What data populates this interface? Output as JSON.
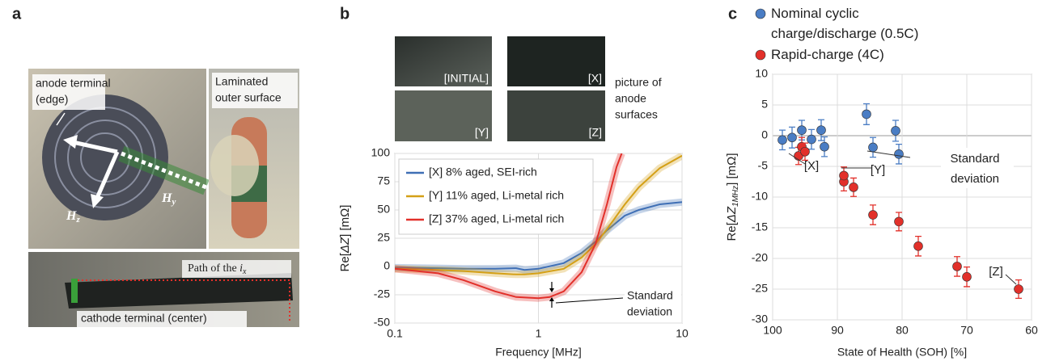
{
  "panel_labels": [
    "a",
    "b",
    "c"
  ],
  "photos_a": {
    "anode_terminal": [
      "anode terminal",
      "(edge)"
    ],
    "laminated": [
      "Laminated",
      "outer surface"
    ],
    "hz": [
      "H",
      "z"
    ],
    "hy": [
      "H",
      "y"
    ],
    "path": [
      "Path of the ",
      "i",
      "x"
    ],
    "cathode_terminal": "cathode terminal (center)"
  },
  "photos_b": {
    "labels": [
      "[INITIAL]",
      "[X]",
      "[Y]",
      "[Z]"
    ],
    "caption": [
      "picture of",
      "anode",
      "surfaces"
    ]
  },
  "chart_data": [
    {
      "type": "line",
      "xlabel": "Frequency [MHz]",
      "ylabel": [
        "Re[",
        "ΔZ",
        "]  [mΩ]"
      ],
      "log_x": true,
      "xlim": [
        0.1,
        10
      ],
      "xticks": [
        0.1,
        1,
        10
      ],
      "ylim": [
        -50,
        100
      ],
      "yticks": [
        -50,
        -25,
        0,
        25,
        50,
        75,
        100
      ],
      "grid": true,
      "legend": "upper left",
      "annotation": [
        "Standard",
        "deviation"
      ],
      "series": [
        {
          "name": "[X] 8% aged, SEI-rich",
          "color": "#3f6fb5",
          "x": [
            0.1,
            0.2,
            0.3,
            0.5,
            0.7,
            0.8,
            1,
            1.5,
            2,
            2.5,
            3,
            4,
            5,
            7,
            10
          ],
          "values": [
            -1,
            -1.5,
            -2,
            -2,
            -1.5,
            -3,
            -2,
            3,
            12,
            22,
            32,
            45,
            50,
            55,
            57
          ]
        },
        {
          "name": "[Y] 11% aged, Li-metal rich",
          "color": "#d4a017",
          "x": [
            0.1,
            0.2,
            0.3,
            0.5,
            0.7,
            0.8,
            1,
            1.5,
            2,
            2.5,
            3,
            4,
            5,
            7,
            10
          ],
          "values": [
            -2,
            -3,
            -4,
            -6,
            -7,
            -7,
            -6,
            -2,
            8,
            20,
            33,
            55,
            70,
            87,
            98
          ]
        },
        {
          "name": "[Z] 37% aged, Li-metal rich",
          "color": "#e2302a",
          "x": [
            0.1,
            0.2,
            0.3,
            0.5,
            0.7,
            1,
            1.2,
            1.5,
            2,
            2.5,
            3,
            3.5,
            3.8
          ],
          "values": [
            -2,
            -6,
            -12,
            -22,
            -27,
            -28,
            -27,
            -22,
            -5,
            20,
            55,
            88,
            100
          ]
        }
      ]
    },
    {
      "type": "scatter",
      "xlabel": "State of Health (SOH) [%]",
      "ylabel": [
        "Re[",
        "ΔZ",
        "1MHz",
        "] [mΩ]"
      ],
      "xlim": [
        100,
        60
      ],
      "xticks": [
        100,
        90,
        80,
        70,
        60
      ],
      "ylim": [
        -30,
        10
      ],
      "yticks": [
        10,
        5,
        0,
        -5,
        -10,
        -15,
        -20,
        -25,
        -30
      ],
      "grid": true,
      "legend": "top",
      "annotations": [
        "[X]",
        "[Y]",
        "[Z]"
      ],
      "std_label": [
        "Standard",
        "deviation"
      ],
      "series": [
        {
          "name": "Nominal cyclic charge/discharge (0.5C)",
          "color": "#4a7dc4",
          "x": [
            98.5,
            97,
            95.5,
            94,
            92.5,
            92,
            85.5,
            84.5,
            81,
            80.5
          ],
          "values": [
            -0.7,
            -0.3,
            0.9,
            -0.6,
            0.9,
            -1.8,
            3.5,
            -1.9,
            0.8,
            -3
          ],
          "errors": [
            1.6,
            1.7,
            1.6,
            1.6,
            1.7,
            1.6,
            1.7,
            1.6,
            1.7,
            1.6
          ]
        },
        {
          "name": "Rapid-charge (4C)",
          "color": "#e2302a",
          "x": [
            96,
            95.5,
            95,
            89,
            89,
            87.5,
            84.5,
            80.5,
            77.5,
            71.5,
            70,
            62
          ],
          "values": [
            -3.3,
            -1.8,
            -2.6,
            -7.5,
            -6.5,
            -8.4,
            -12.9,
            -14,
            -18,
            -21.3,
            -23,
            -25
          ],
          "errors": [
            1.4,
            1.5,
            1.4,
            1.5,
            1.4,
            1.5,
            1.6,
            1.5,
            1.6,
            1.6,
            1.6,
            1.5
          ]
        }
      ]
    }
  ]
}
